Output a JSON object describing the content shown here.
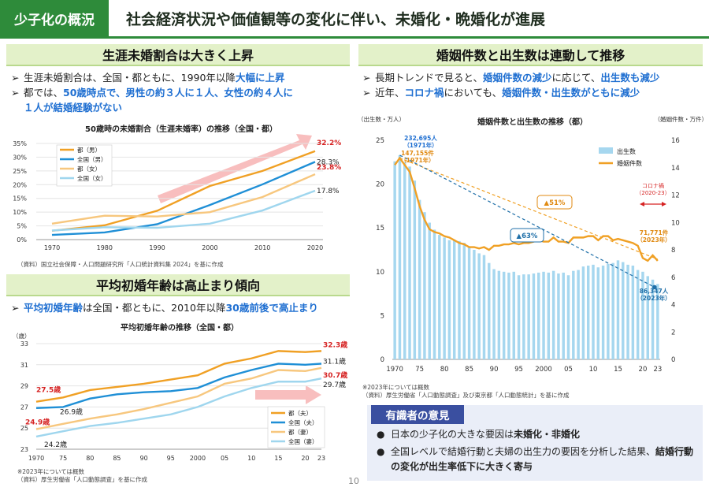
{
  "header": {
    "tag": "少子化の概況",
    "title": "社会経済状況や価値観等の変化に伴い、未婚化・晩婚化が進展"
  },
  "left_top": {
    "heading": "生涯未婚割合は大きく上昇",
    "bullet1_a": "生涯未婚割合は、全国・都ともに、1990年以降",
    "bullet1_b": "大幅に上昇",
    "bullet2_a": "都では、",
    "bullet2_b": "50歳時点で、男性の約３人に１人、女性の約４人に",
    "bullet2_c": "１人が結婚経験がない",
    "source": "（資料）国立社会保障・人口問題研究所「人口統計資料集 2024」を基に作成"
  },
  "left_bottom": {
    "heading": "平均初婚年齢は高止まり傾向",
    "bullet1_a": "平均初婚年齢",
    "bullet1_b": "は全国・都ともに、2010年以降",
    "bullet1_c": "30歳前後で高止まり",
    "note": "※2023年については概数",
    "source": "（資料）厚生労働省「人口動態調査」を基に作成"
  },
  "right_top": {
    "heading": "婚姻件数と出生数は連動して推移",
    "bullet1_a": "長期トレンドで見ると、",
    "bullet1_b": "婚姻件数の減少",
    "bullet1_c": "に応じて、",
    "bullet1_d": "出生数も減少",
    "bullet2_a": "近年、",
    "bullet2_b": "コロナ禍",
    "bullet2_c": "においても、",
    "bullet2_d": "婚姻件数・出生数がともに減少",
    "note": "※2023年については概数",
    "source": "（資料）厚生労働省「人口動態調査」及び東京都「人口動態統計」を基に作成"
  },
  "expert": {
    "tag": "有識者の意見",
    "item1_a": "日本の少子化の大きな要因は",
    "item1_b": "未婚化・非婚化",
    "item2_a": "全国レベルで結婚行動と夫婦の出生力の要因を分析した結果、",
    "item2_b": "結婚行動の変化が出生率低下に大きく寄与"
  },
  "page_number": "10",
  "colors": {
    "accent_green": "#2e8b3a",
    "highlight_blue": "#1f6fd1",
    "highlight_red": "#d62323",
    "tokyo_male": "#f0a024",
    "national_male": "#1f8fd6",
    "tokyo_female": "#f7c77e",
    "national_female": "#9fd6ee",
    "births_bar": "#a6d7ef",
    "marriage_line": "#f0a024"
  },
  "chart_data": [
    {
      "type": "line",
      "title": "50歳時の未婚割合（生涯未婚率）の推移（全国・都）",
      "x": [
        1970,
        1980,
        1990,
        2000,
        2010,
        2020
      ],
      "xticks": [
        "1970",
        "1980",
        "1990",
        "2000",
        "2010",
        "2020"
      ],
      "yticks": [
        "0%",
        "5%",
        "10%",
        "15%",
        "20%",
        "25%",
        "30%",
        "35%"
      ],
      "ylim": [
        0,
        35
      ],
      "series": [
        {
          "name": "都（男）",
          "color": "#f0a024",
          "values": [
            3.2,
            5.2,
            10.5,
            19.5,
            25.0,
            32.2
          ],
          "end_label": "32.2%",
          "end_red": true
        },
        {
          "name": "全国（男）",
          "color": "#1f8fd6",
          "values": [
            1.7,
            2.6,
            5.6,
            12.6,
            20.1,
            28.3
          ],
          "end_label": "28.3%",
          "end_red": false
        },
        {
          "name": "都（女）",
          "color": "#f7c77e",
          "values": [
            5.8,
            8.7,
            8.4,
            10.0,
            15.5,
            23.8
          ],
          "end_label": "23.8%",
          "end_red": true
        },
        {
          "name": "全国（女）",
          "color": "#9fd6ee",
          "values": [
            3.3,
            4.5,
            4.3,
            5.8,
            10.6,
            17.8
          ],
          "end_label": "17.8%",
          "end_red": false
        }
      ]
    },
    {
      "type": "line",
      "title": "平均初婚年齢の推移（全国・都）",
      "ylabel": "（歳）",
      "x": [
        1970,
        1975,
        1980,
        1985,
        1990,
        1995,
        2000,
        2005,
        2010,
        2015,
        2020,
        2023
      ],
      "xticks": [
        "1970",
        "75",
        "80",
        "85",
        "90",
        "95",
        "2000",
        "05",
        "10",
        "15",
        "20",
        "23"
      ],
      "yticks": [
        "23",
        "25",
        "27",
        "29",
        "31",
        "33"
      ],
      "ylim": [
        23,
        33
      ],
      "series": [
        {
          "name": "都（夫）",
          "color": "#f0a024",
          "values": [
            27.5,
            27.9,
            28.6,
            28.9,
            29.2,
            29.6,
            30.0,
            31.1,
            31.6,
            32.3,
            32.2,
            32.3
          ],
          "start_label": "27.5歳",
          "start_red": true,
          "end_label": "32.3歳",
          "end_red": true
        },
        {
          "name": "全国（夫）",
          "color": "#1f8fd6",
          "values": [
            26.9,
            27.0,
            27.8,
            28.2,
            28.4,
            28.5,
            28.8,
            29.8,
            30.5,
            31.1,
            31.0,
            31.1
          ],
          "start_label": "26.9歳",
          "start_red": false,
          "end_label": "31.1歳",
          "end_red": false
        },
        {
          "name": "都（妻）",
          "color": "#f7c77e",
          "values": [
            24.9,
            25.4,
            25.9,
            26.3,
            26.8,
            27.4,
            28.0,
            29.2,
            29.7,
            30.5,
            30.4,
            30.7
          ],
          "start_label": "24.9歳",
          "start_red": true,
          "end_label": "30.7歳",
          "end_red": true
        },
        {
          "name": "全国（妻）",
          "color": "#9fd6ee",
          "values": [
            24.2,
            24.7,
            25.2,
            25.5,
            25.9,
            26.3,
            27.0,
            28.0,
            28.8,
            29.4,
            29.4,
            29.7
          ],
          "start_label": "24.2歳",
          "start_red": false,
          "end_label": "29.7歳",
          "end_red": false
        }
      ]
    },
    {
      "type": "bar+line",
      "title": "婚姻件数と出生数の推移（都）",
      "y_left_label": "（出生数・万人）",
      "y_right_label": "（婚姻件数・万件）",
      "y_left_ticks": [
        "0",
        "5",
        "10",
        "15",
        "20",
        "25"
      ],
      "y_right_ticks": [
        "0",
        "2",
        "4",
        "6",
        "8",
        "10",
        "12",
        "14",
        "16"
      ],
      "ylim_left": [
        0,
        25
      ],
      "ylim_right": [
        0,
        16
      ],
      "xticks": [
        "1970",
        "75",
        "80",
        "85",
        "90",
        "95",
        "2000",
        "05",
        "10",
        "15",
        "20",
        "23"
      ],
      "x": [
        1970,
        1971,
        1972,
        1973,
        1974,
        1975,
        1976,
        1977,
        1978,
        1979,
        1980,
        1981,
        1982,
        1983,
        1984,
        1985,
        1986,
        1987,
        1988,
        1989,
        1990,
        1991,
        1992,
        1993,
        1994,
        1995,
        1996,
        1997,
        1998,
        1999,
        2000,
        2001,
        2002,
        2003,
        2004,
        2005,
        2006,
        2007,
        2008,
        2009,
        2010,
        2011,
        2012,
        2013,
        2014,
        2015,
        2016,
        2017,
        2018,
        2019,
        2020,
        2021,
        2022,
        2023
      ],
      "births_man": [
        22.6,
        23.3,
        22.5,
        22.0,
        20.4,
        18.2,
        16.8,
        15.6,
        14.8,
        14.2,
        13.9,
        13.6,
        13.6,
        13.5,
        13.3,
        12.9,
        12.5,
        12.1,
        11.9,
        11.0,
        10.3,
        10.1,
        10.0,
        9.9,
        10.0,
        9.6,
        9.7,
        9.7,
        9.8,
        9.9,
        10.0,
        9.9,
        10.1,
        9.8,
        9.9,
        9.6,
        10.1,
        10.2,
        10.6,
        10.7,
        10.8,
        10.5,
        10.7,
        10.9,
        11.0,
        11.3,
        11.1,
        10.8,
        10.7,
        10.2,
        10.0,
        9.5,
        9.1,
        8.6
      ],
      "marriages_man": [
        14.2,
        14.7,
        14.2,
        13.7,
        12.5,
        11.2,
        10.2,
        9.5,
        9.3,
        9.2,
        9.0,
        8.9,
        8.7,
        8.5,
        8.4,
        8.2,
        8.2,
        8.1,
        8.2,
        8.0,
        8.3,
        8.3,
        8.4,
        8.4,
        8.5,
        8.4,
        8.5,
        8.5,
        8.6,
        8.7,
        8.6,
        8.6,
        8.9,
        8.6,
        8.6,
        8.5,
        8.9,
        8.9,
        8.9,
        9.0,
        9.0,
        8.7,
        9.0,
        9.0,
        8.7,
        8.8,
        8.7,
        8.6,
        8.5,
        8.3,
        7.4,
        7.2,
        7.6,
        7.2
      ],
      "legend": [
        "出生数",
        "婚姻件数"
      ],
      "annotations": {
        "births_1971": "232,695人\n（1971年）",
        "marriages_1971": "147,155件\n（1971年）",
        "marriages_2023": "71,771件\n（2023年）",
        "births_2023": "86,347人\n（2023年）",
        "marriage_decline": "▲51%",
        "births_decline": "▲63%",
        "covid": "コロナ禍\n（2020-23）"
      }
    }
  ]
}
